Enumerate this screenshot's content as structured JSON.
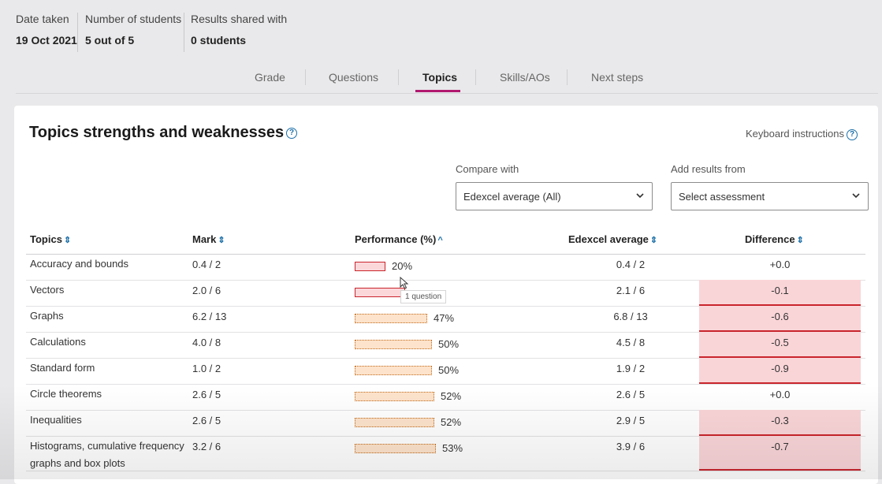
{
  "meta": [
    {
      "label": "Date taken",
      "value": "19 Oct 2021"
    },
    {
      "label": "Number of students",
      "value": "5 out of 5"
    },
    {
      "label": "Results shared with",
      "value": "0 students"
    }
  ],
  "tabs": [
    "Grade",
    "Questions",
    "Topics",
    "Skills/AOs",
    "Next steps"
  ],
  "active_tab": "Topics",
  "card": {
    "title": "Topics strengths and weaknesses",
    "keyboard_instructions": "Keyboard instructions",
    "compare_label": "Compare with",
    "compare_value": "Edexcel average (All)",
    "add_results_label": "Add results from",
    "add_results_placeholder": "Select assessment"
  },
  "table": {
    "headers": [
      "Topics",
      "Mark",
      "Performance (%)",
      "Edexcel average",
      "Difference"
    ],
    "rows": [
      {
        "topic": "Accuracy and bounds",
        "mark": "0.4 / 2",
        "performance": "20%",
        "perf_value": 20,
        "average": "0.4 / 2",
        "difference": "+0.0"
      },
      {
        "topic": "Vectors",
        "mark": "2.0 / 6",
        "performance": "",
        "perf_value": 33,
        "average": "2.1 / 6",
        "difference": "-0.1"
      },
      {
        "topic": "Graphs",
        "mark": "6.2 / 13",
        "performance": "47%",
        "perf_value": 47,
        "average": "6.8 / 13",
        "difference": "-0.6"
      },
      {
        "topic": "Calculations",
        "mark": "4.0 / 8",
        "performance": "50%",
        "perf_value": 50,
        "average": "4.5 / 8",
        "difference": "-0.5"
      },
      {
        "topic": "Standard form",
        "mark": "1.0 / 2",
        "performance": "50%",
        "perf_value": 50,
        "average": "1.9 / 2",
        "difference": "-0.9"
      },
      {
        "topic": "Circle theorems",
        "mark": "2.6 / 5",
        "performance": "52%",
        "perf_value": 52,
        "average": "2.6 / 5",
        "difference": "+0.0"
      },
      {
        "topic": "Inequalities",
        "mark": "2.6 / 5",
        "performance": "52%",
        "perf_value": 52,
        "average": "2.9 / 5",
        "difference": "-0.3"
      },
      {
        "topic": "Histograms, cumulative frequency graphs and box plots",
        "mark": "3.2 / 6",
        "performance": "53%",
        "perf_value": 53,
        "average": "3.9 / 6",
        "difference": "-0.7"
      }
    ]
  },
  "tooltip": "1 question",
  "colors": {
    "accent": "#b1196f",
    "link": "#1b6fa8",
    "weak": "#c9252c",
    "weak_fill": "#fad5d8",
    "amber": "#c06a18"
  }
}
